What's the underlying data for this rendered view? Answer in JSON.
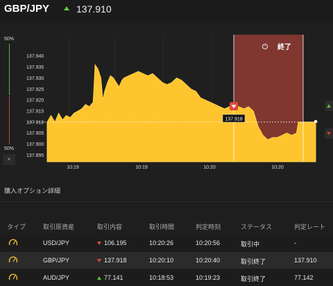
{
  "header": {
    "pair": "GBP/JPY",
    "rate": "137.910",
    "rate_direction": "up"
  },
  "chart_panel": {
    "pct_top": "50%",
    "pct_bottom": "50%",
    "close_button": "×",
    "expiry_label": "終了",
    "current_price_tag": "137.918"
  },
  "chart_data": {
    "type": "area",
    "y_ticks": [
      "137.940",
      "137.935",
      "137.930",
      "137.925",
      "137.920",
      "137.915",
      "137.910",
      "137.905",
      "137.900",
      "137.895"
    ],
    "x_ticks": [
      "10:19",
      "10:19",
      "10:20",
      "10:20"
    ],
    "ylim": [
      137.892,
      137.944
    ],
    "reference_line": 137.91,
    "entry_price": 137.918,
    "points": [
      [
        0,
        137.91
      ],
      [
        0.4,
        137.913
      ],
      [
        0.8,
        137.91
      ],
      [
        1.2,
        137.914
      ],
      [
        1.6,
        137.911
      ],
      [
        2.0,
        137.913
      ],
      [
        2.4,
        137.912
      ],
      [
        2.8,
        137.914
      ],
      [
        3.2,
        137.915
      ],
      [
        3.6,
        137.916
      ],
      [
        4.0,
        137.918
      ],
      [
        4.4,
        137.917
      ],
      [
        4.8,
        137.919
      ],
      [
        5.0,
        137.936
      ],
      [
        5.3,
        137.934
      ],
      [
        5.6,
        137.93
      ],
      [
        5.8,
        137.92
      ],
      [
        6.0,
        137.924
      ],
      [
        6.3,
        137.928
      ],
      [
        6.6,
        137.931
      ],
      [
        6.9,
        137.93
      ],
      [
        7.2,
        137.928
      ],
      [
        7.5,
        137.926
      ],
      [
        7.8,
        137.929
      ],
      [
        8.0,
        137.93
      ],
      [
        8.5,
        137.931
      ],
      [
        9.0,
        137.932
      ],
      [
        9.5,
        137.933
      ],
      [
        10.0,
        137.932
      ],
      [
        10.5,
        137.931
      ],
      [
        11.0,
        137.932
      ],
      [
        11.5,
        137.93
      ],
      [
        12.0,
        137.928
      ],
      [
        12.5,
        137.927
      ],
      [
        13.0,
        137.928
      ],
      [
        13.5,
        137.93
      ],
      [
        14.0,
        137.929
      ],
      [
        14.5,
        137.927
      ],
      [
        15.0,
        137.925
      ],
      [
        15.5,
        137.924
      ],
      [
        16.0,
        137.921
      ],
      [
        16.5,
        137.92
      ],
      [
        17.0,
        137.919
      ],
      [
        17.5,
        137.918
      ],
      [
        18.0,
        137.917
      ],
      [
        18.5,
        137.916
      ],
      [
        19.0,
        137.917
      ],
      [
        19.5,
        137.916
      ],
      [
        20.0,
        137.917
      ],
      [
        20.5,
        137.916
      ],
      [
        21.0,
        137.917
      ],
      [
        21.5,
        137.915
      ],
      [
        22.0,
        137.908
      ],
      [
        22.5,
        137.904
      ],
      [
        23.0,
        137.902
      ],
      [
        23.5,
        137.903
      ],
      [
        24.0,
        137.903
      ],
      [
        24.5,
        137.904
      ],
      [
        25.0,
        137.905
      ],
      [
        25.5,
        137.904
      ],
      [
        26.0,
        137.905
      ],
      [
        26.2,
        137.91
      ],
      [
        27.0,
        137.91
      ],
      [
        28.0,
        137.91
      ]
    ],
    "colors": {
      "fill": "#ffc52f",
      "line": "#ffd34a",
      "expiry_zone": "#8a3a32",
      "up": "#56c23a",
      "down": "#d23c2e"
    }
  },
  "section": {
    "title": "購入オプション詳細"
  },
  "table": {
    "headers": [
      "タイプ",
      "取引原資産",
      "取引内容",
      "取引時間",
      "判定時刻",
      "ステータス",
      "判定レート"
    ],
    "rows": [
      {
        "asset": "USD/JPY",
        "direction": "down",
        "trade": "106.195",
        "time": "10:20:26",
        "judge": "10:20:56",
        "status": "取引中",
        "rate": "-"
      },
      {
        "asset": "GBP/JPY",
        "direction": "down",
        "trade": "137.918",
        "time": "10:20:10",
        "judge": "10:20:40",
        "status": "取引終了",
        "rate": "137.910"
      },
      {
        "asset": "AUD/JPY",
        "direction": "up",
        "trade": "77.141",
        "time": "10:18:53",
        "judge": "10:19:23",
        "status": "取引終了",
        "rate": "77.142"
      }
    ]
  }
}
